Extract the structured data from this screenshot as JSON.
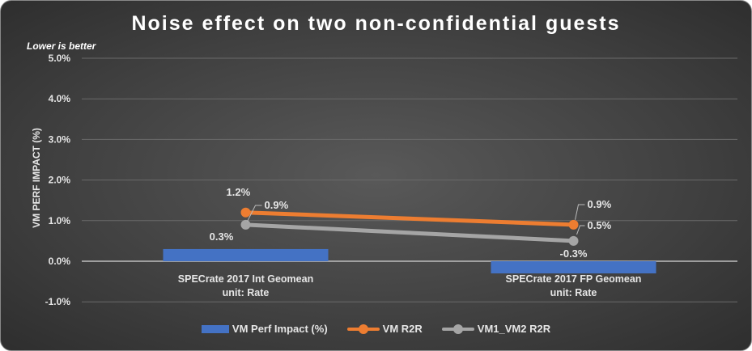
{
  "chart_data": {
    "type": "bar+line",
    "title": "Noise effect on two non-confidential guests",
    "note": "Lower is better",
    "ylabel": "VM PERF IMPACT (%)",
    "xlabel": "",
    "ylim": [
      -1,
      5
    ],
    "yticks": [
      "-1.0%",
      "0.0%",
      "1.0%",
      "2.0%",
      "3.0%",
      "4.0%",
      "5.0%"
    ],
    "ytick_values": [
      -1,
      0,
      1,
      2,
      3,
      4,
      5
    ],
    "categories": [
      [
        "SPECrate 2017 Int Geomean",
        "unit: Rate"
      ],
      [
        "SPECrate 2017 FP Geomean",
        "unit: Rate"
      ]
    ],
    "series": [
      {
        "name": "VM Perf Impact (%)",
        "type": "bar",
        "color": "#4472c4",
        "values": [
          0.3,
          -0.3
        ],
        "labels": [
          "0.3%",
          "-0.3%"
        ]
      },
      {
        "name": "VM R2R",
        "type": "line",
        "color": "#ed7d31",
        "values": [
          1.2,
          0.9
        ],
        "labels": [
          "1.2%",
          "0.9%"
        ]
      },
      {
        "name": "VM1_VM2 R2R",
        "type": "line",
        "color": "#a5a5a5",
        "values": [
          0.9,
          0.5
        ],
        "labels": [
          "0.9%",
          "0.5%"
        ]
      }
    ],
    "grid": true,
    "legend": "bottom"
  }
}
